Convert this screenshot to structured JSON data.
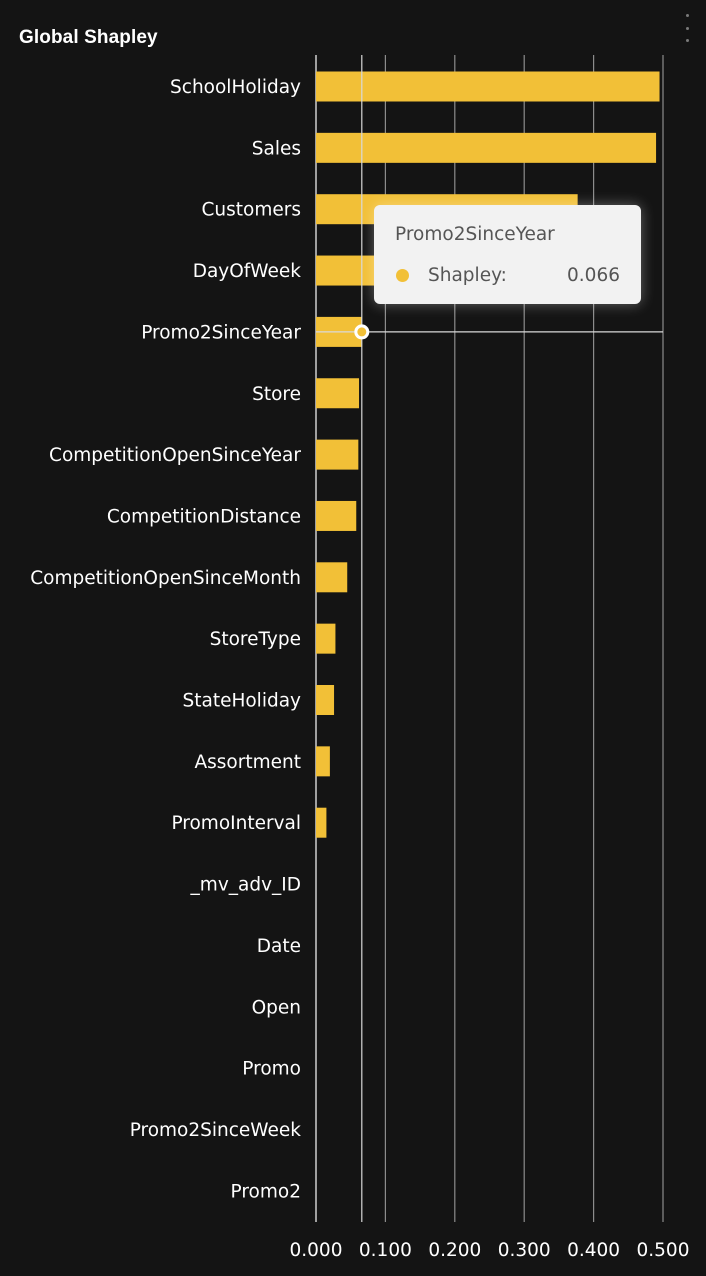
{
  "title": "Global Shapley",
  "menu_icon": "more-vertical-icon",
  "chart_data": {
    "type": "bar",
    "orientation": "horizontal",
    "categories": [
      "SchoolHoliday",
      "Sales",
      "Customers",
      "DayOfWeek",
      "Promo2SinceYear",
      "Store",
      "CompetitionOpenSinceYear",
      "CompetitionDistance",
      "CompetitionOpenSinceMonth",
      "StoreType",
      "StateHoliday",
      "Assortment",
      "PromoInterval",
      "_mv_adv_ID",
      "Date",
      "Open",
      "Promo",
      "Promo2SinceWeek",
      "Promo2"
    ],
    "series": [
      {
        "name": "Shapley",
        "color": "#f2c037",
        "values": [
          0.495,
          0.49,
          0.377,
          0.123,
          0.066,
          0.062,
          0.061,
          0.058,
          0.045,
          0.028,
          0.026,
          0.02,
          0.015,
          0,
          0,
          0,
          0,
          0,
          0
        ]
      }
    ],
    "xticks": [
      "0.000",
      "0.100",
      "0.200",
      "0.300",
      "0.400",
      "0.500"
    ],
    "xlim": [
      0,
      0.5
    ],
    "grid": true,
    "highlight_category": "Promo2SinceYear",
    "crosshair_x": 0.066
  },
  "tooltip": {
    "title": "Promo2SinceYear",
    "label": "Shapley:",
    "value": "0.066"
  }
}
